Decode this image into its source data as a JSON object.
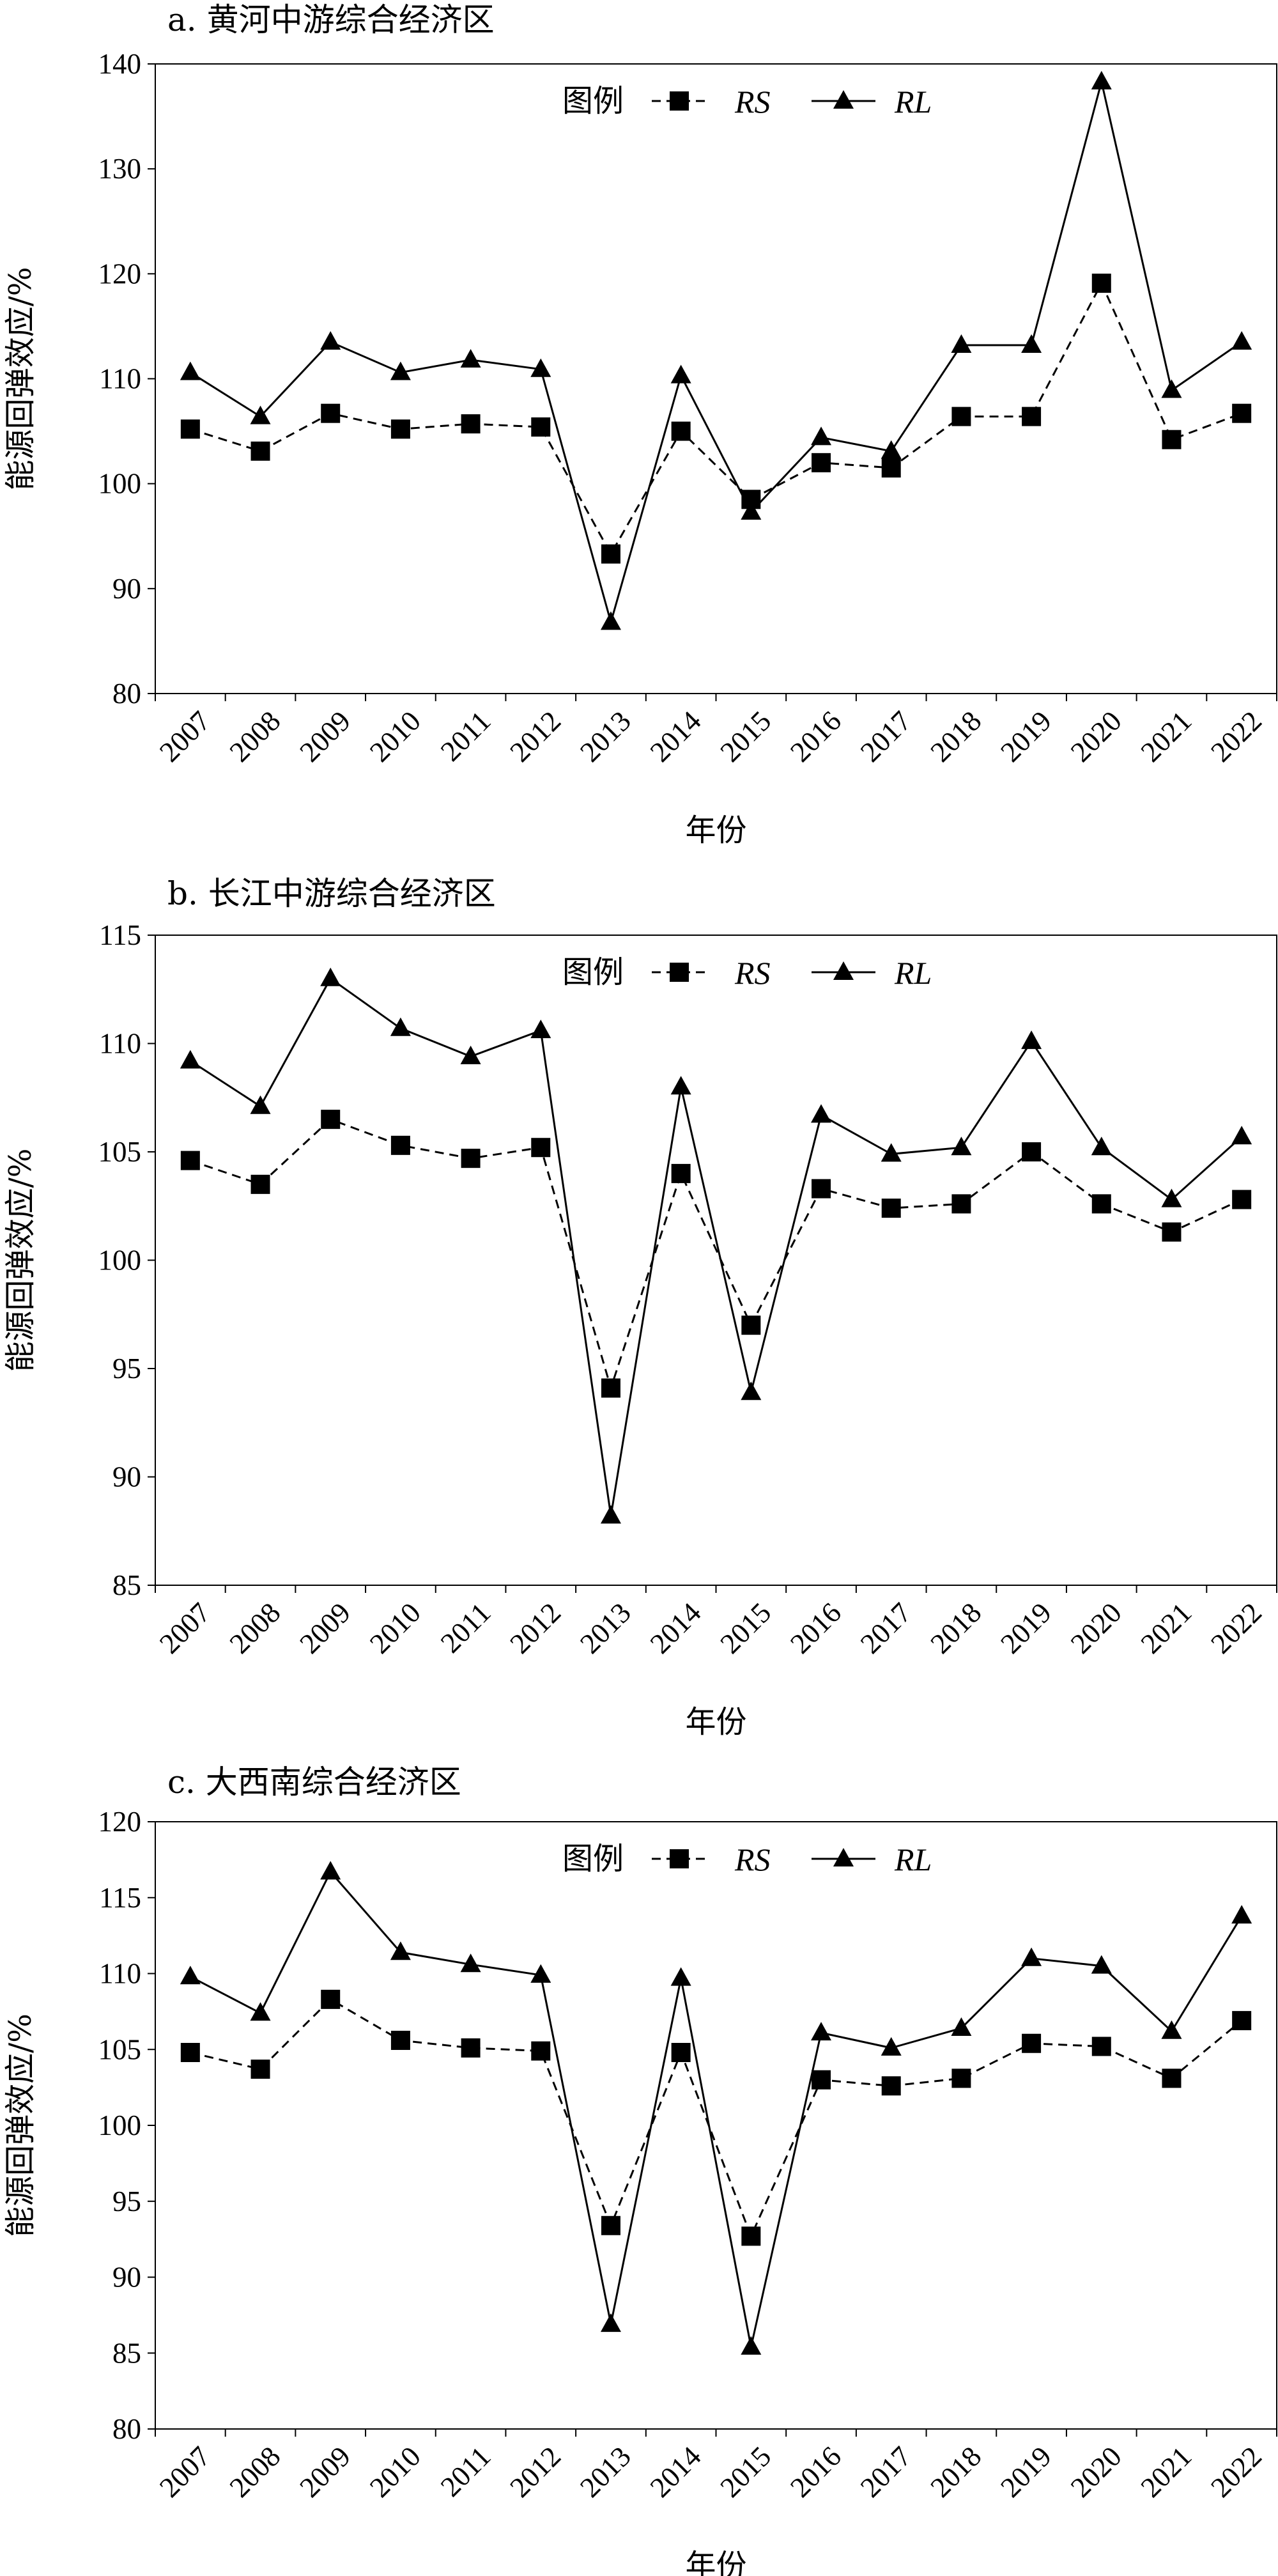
{
  "chart_data": [
    {
      "type": "line",
      "title": "a. 黄河中游综合经济区",
      "xlabel": "年份",
      "ylabel": "能源回弹效应/%",
      "ylim": [
        80,
        140
      ],
      "yticks": [
        80,
        90,
        100,
        110,
        120,
        130,
        140
      ],
      "categories": [
        "2007",
        "2008",
        "2009",
        "2010",
        "2011",
        "2012",
        "2013",
        "2014",
        "2015",
        "2016",
        "2017",
        "2018",
        "2019",
        "2020",
        "2021",
        "2022"
      ],
      "legend_title": "图例",
      "legend_position": "top-center",
      "grid": false,
      "series": [
        {
          "name": "RS",
          "marker": "square",
          "line": "dashed",
          "values": [
            105.2,
            103.1,
            106.7,
            105.2,
            105.7,
            105.4,
            93.3,
            105.0,
            98.5,
            102.0,
            101.5,
            106.4,
            106.4,
            119.1,
            104.2,
            106.7
          ]
        },
        {
          "name": "RL",
          "marker": "triangle",
          "line": "solid",
          "values": [
            110.6,
            106.4,
            113.5,
            110.6,
            111.8,
            110.9,
            86.8,
            110.3,
            97.3,
            104.4,
            103.1,
            113.2,
            113.2,
            138.3,
            108.9,
            113.5
          ]
        }
      ]
    },
    {
      "type": "line",
      "title": "b. 长江中游综合经济区",
      "xlabel": "年份",
      "ylabel": "能源回弹效应/%",
      "ylim": [
        85,
        115
      ],
      "yticks": [
        85,
        90,
        95,
        100,
        105,
        110,
        115
      ],
      "categories": [
        "2007",
        "2008",
        "2009",
        "2010",
        "2011",
        "2012",
        "2013",
        "2014",
        "2015",
        "2016",
        "2017",
        "2018",
        "2019",
        "2020",
        "2021",
        "2022"
      ],
      "legend_title": "图例",
      "legend_position": "top-center",
      "grid": false,
      "series": [
        {
          "name": "RS",
          "marker": "square",
          "line": "dashed",
          "values": [
            104.6,
            103.5,
            106.5,
            105.3,
            104.7,
            105.2,
            94.1,
            104.0,
            97.0,
            103.3,
            102.4,
            102.6,
            105.0,
            102.6,
            101.3,
            102.8
          ]
        },
        {
          "name": "RL",
          "marker": "triangle",
          "line": "solid",
          "values": [
            109.2,
            107.1,
            113.0,
            110.7,
            109.4,
            110.6,
            88.2,
            108.0,
            93.9,
            106.7,
            104.9,
            105.2,
            110.1,
            105.2,
            102.8,
            105.7
          ]
        }
      ]
    },
    {
      "type": "line",
      "title": "c. 大西南综合经济区",
      "xlabel": "年份",
      "ylabel": "能源回弹效应/%",
      "ylim": [
        80,
        120
      ],
      "yticks": [
        80,
        85,
        90,
        95,
        100,
        105,
        110,
        115,
        120
      ],
      "categories": [
        "2007",
        "2008",
        "2009",
        "2010",
        "2011",
        "2012",
        "2013",
        "2014",
        "2015",
        "2016",
        "2017",
        "2018",
        "2019",
        "2020",
        "2021",
        "2022"
      ],
      "legend_title": "图例",
      "legend_position": "top-center",
      "grid": false,
      "series": [
        {
          "name": "RS",
          "marker": "square",
          "line": "dashed",
          "values": [
            104.8,
            103.7,
            108.3,
            105.6,
            105.1,
            104.9,
            93.4,
            104.8,
            92.7,
            103.0,
            102.6,
            103.1,
            105.4,
            105.2,
            103.1,
            106.9
          ]
        },
        {
          "name": "RL",
          "marker": "triangle",
          "line": "solid",
          "values": [
            109.8,
            107.4,
            116.7,
            111.4,
            110.6,
            109.9,
            86.9,
            109.7,
            85.4,
            106.1,
            105.1,
            106.4,
            111.0,
            110.5,
            106.2,
            113.8
          ]
        }
      ]
    }
  ]
}
